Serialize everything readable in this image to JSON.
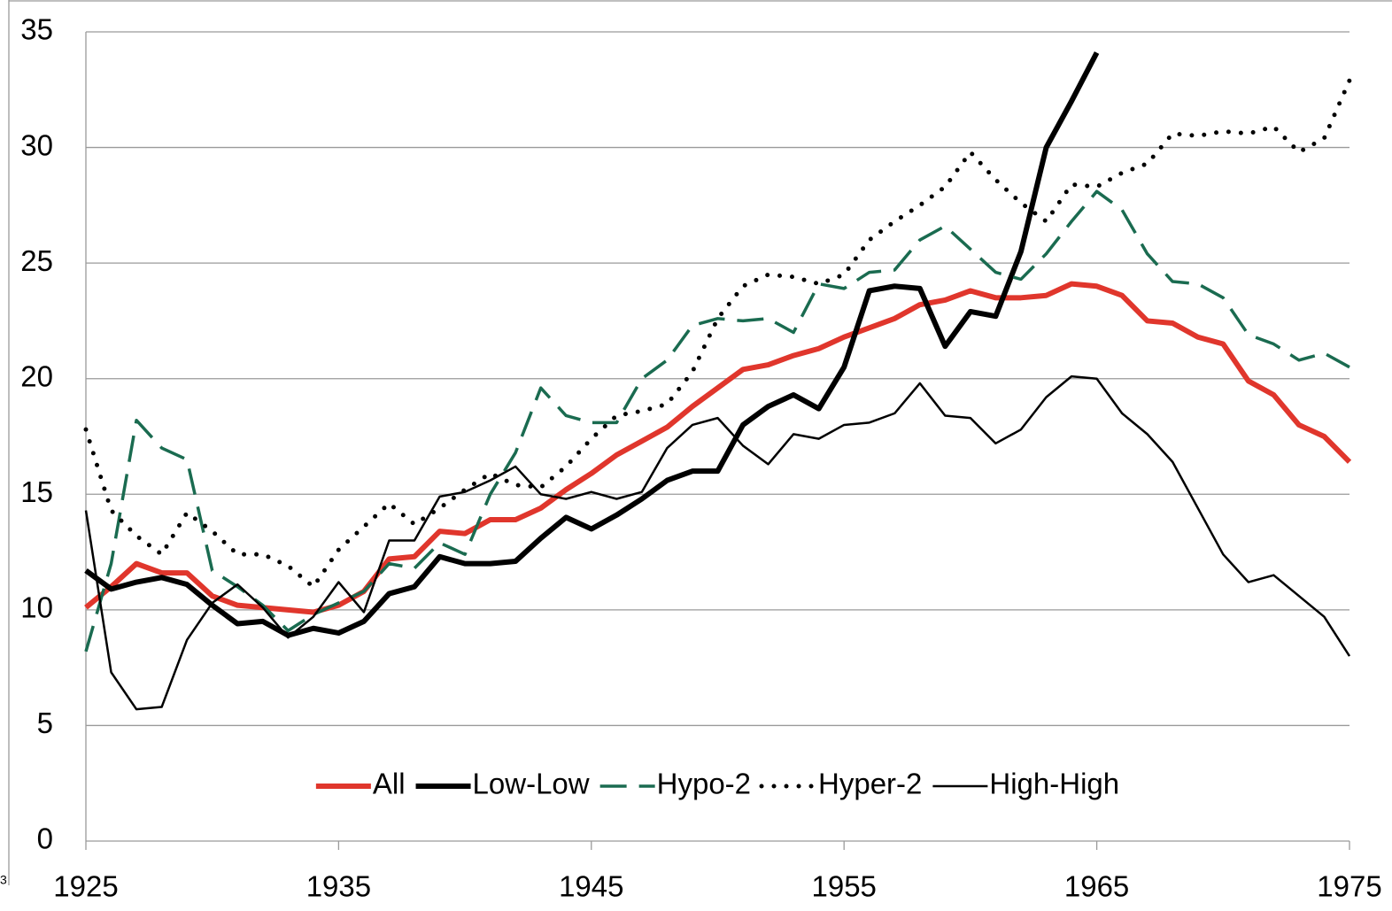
{
  "chart_data": {
    "type": "line",
    "corner_text": "3",
    "x": [
      1925,
      1926,
      1927,
      1928,
      1929,
      1930,
      1931,
      1932,
      1933,
      1934,
      1935,
      1936,
      1937,
      1938,
      1939,
      1940,
      1941,
      1942,
      1943,
      1944,
      1945,
      1946,
      1947,
      1948,
      1949,
      1950,
      1951,
      1952,
      1953,
      1954,
      1955,
      1956,
      1957,
      1958,
      1959,
      1960,
      1961,
      1962,
      1963,
      1964,
      1965,
      1966,
      1967,
      1968,
      1969,
      1970,
      1971,
      1972,
      1973,
      1974,
      1975
    ],
    "xlim": [
      1925,
      1975
    ],
    "xticks": [
      1925,
      1935,
      1945,
      1955,
      1965,
      1975
    ],
    "ylim": [
      0,
      35
    ],
    "yticks": [
      0,
      5,
      10,
      15,
      20,
      25,
      30,
      35
    ],
    "grid": true,
    "legend": "lower center",
    "series": [
      {
        "name": "All",
        "color": "#e0362c",
        "line_style": "thick",
        "values": [
          10.1,
          11,
          12,
          11.6,
          11.6,
          10.6,
          10.2,
          10.1,
          10,
          9.9,
          10.2,
          10.8,
          12.2,
          12.3,
          13.4,
          13.3,
          13.9,
          13.9,
          14.4,
          15.2,
          15.9,
          16.7,
          17.3,
          17.9,
          18.8,
          19.6,
          20.4,
          20.6,
          21,
          21.3,
          21.8,
          22.2,
          22.6,
          23.2,
          23.4,
          23.8,
          23.5,
          23.5,
          23.6,
          24.1,
          24,
          23.6,
          22.5,
          22.4,
          21.8,
          21.5,
          19.9,
          19.3,
          18,
          17.5,
          16.4
        ]
      },
      {
        "name": "Low-Low",
        "color": "#000000",
        "line_style": "thick",
        "values": [
          11.7,
          10.9,
          11.2,
          11.4,
          11.1,
          10.2,
          9.4,
          9.5,
          8.9,
          9.2,
          9,
          9.5,
          10.7,
          11,
          12.3,
          12,
          12,
          12.1,
          13.1,
          14,
          13.5,
          14.1,
          14.8,
          15.6,
          16,
          16,
          18,
          18.8,
          19.3,
          18.7,
          20.5,
          23.8,
          24,
          23.9,
          21.4,
          22.9,
          22.7,
          25.5,
          30,
          32,
          34.1,
          null,
          null,
          null,
          null,
          null,
          null,
          null,
          null,
          null,
          null
        ]
      },
      {
        "name": "Hypo-2",
        "color": "#1a6b50",
        "line_style": "dashed",
        "values": [
          8.2,
          12,
          18.2,
          17,
          16.5,
          11.7,
          11,
          10.2,
          9.1,
          9.8,
          10.3,
          10.8,
          12,
          11.8,
          12.9,
          12.4,
          15,
          16.8,
          19.6,
          18.4,
          18.1,
          18.1,
          20,
          20.8,
          22.3,
          22.6,
          22.5,
          22.6,
          22,
          24.1,
          23.9,
          24.6,
          24.7,
          26,
          26.6,
          25.6,
          24.6,
          24.3,
          25.4,
          26.8,
          28.1,
          27.3,
          25.4,
          24.2,
          24.1,
          23.5,
          21.9,
          21.5,
          20.8,
          21.1,
          20.5
        ]
      },
      {
        "name": "Hyper-2",
        "color": "#000000",
        "line_style": "dotted",
        "values": [
          17.8,
          14.3,
          13.2,
          12.4,
          14.2,
          13.4,
          12.4,
          12.4,
          11.9,
          11,
          12.6,
          13.6,
          14.6,
          13.7,
          14.4,
          15.2,
          15.9,
          15.4,
          15.3,
          16.2,
          17.4,
          18.4,
          18.6,
          18.9,
          20.3,
          22.6,
          24,
          24.5,
          24.4,
          24.1,
          24.5,
          26,
          26.8,
          27.5,
          28.3,
          29.8,
          28.6,
          27.6,
          26.8,
          28.4,
          28.3,
          28.9,
          29.3,
          30.6,
          30.5,
          30.7,
          30.6,
          30.9,
          29.8,
          30.4,
          32.9
        ]
      },
      {
        "name": "High-High",
        "color": "#000000",
        "line_style": "thin",
        "values": [
          14.3,
          7.3,
          5.7,
          5.8,
          8.7,
          10.3,
          11.1,
          10.1,
          8.8,
          9.7,
          11.2,
          9.9,
          13,
          13,
          14.9,
          15.1,
          15.6,
          16.2,
          15,
          14.8,
          15.1,
          14.8,
          15.1,
          17,
          18,
          18.3,
          17.1,
          16.3,
          17.6,
          17.4,
          18,
          18.1,
          18.5,
          19.8,
          18.4,
          18.3,
          17.2,
          17.8,
          19.2,
          20.1,
          20,
          18.5,
          17.6,
          16.4,
          14.4,
          12.4,
          11.2,
          11.5,
          10.6,
          9.7,
          8
        ]
      }
    ]
  }
}
